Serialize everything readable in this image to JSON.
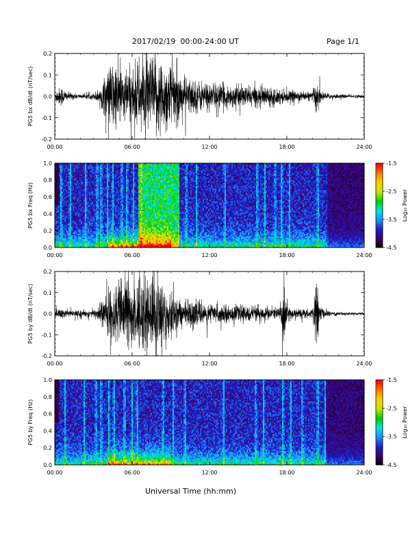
{
  "header": {
    "title": "2017/02/19  00:00-24:00 UT",
    "page": "Page 1/1"
  },
  "xlabel": "Universal Time (hh:mm)",
  "colors": {
    "waveform": "#000000",
    "colormap": [
      "#000000",
      "#3a0066",
      "#2020c8",
      "#1e90ff",
      "#00e5e5",
      "#00d000",
      "#c8e600",
      "#ffd000",
      "#ff7800",
      "#ff0000"
    ]
  },
  "chart_data": [
    {
      "type": "line",
      "ylabel": "PG5 bx dB/dt (nT/sec)",
      "xlim_hours": [
        0,
        24
      ],
      "ylim": [
        -0.2,
        0.2
      ],
      "x_ticks": [
        "00:00",
        "06:00",
        "12:00",
        "18:00",
        "24:00"
      ],
      "y_ticks": [
        "0.2",
        "0.1",
        "0.0",
        "-0.1",
        "-0.2"
      ],
      "envelope": {
        "hours": [
          0,
          0.5,
          1,
          2,
          3,
          3.5,
          4,
          4.5,
          5,
          5.5,
          6,
          6.5,
          7,
          7.5,
          8,
          8.5,
          9,
          9.5,
          10,
          11,
          12,
          13,
          14,
          15,
          16,
          17,
          18,
          19,
          20,
          20.3,
          20.6,
          21,
          22,
          23,
          24
        ],
        "amplitude": [
          0.03,
          0.05,
          0.02,
          0.01,
          0.015,
          0.04,
          0.12,
          0.18,
          0.16,
          0.13,
          0.15,
          0.17,
          0.2,
          0.2,
          0.2,
          0.18,
          0.17,
          0.13,
          0.1,
          0.08,
          0.07,
          0.06,
          0.055,
          0.05,
          0.05,
          0.045,
          0.03,
          0.025,
          0.02,
          0.1,
          0.03,
          0.015,
          0.01,
          0.008,
          0.008
        ]
      }
    },
    {
      "type": "heatmap",
      "ylabel": "PG5 bx Freq (Hz)",
      "xlim_hours": [
        0,
        24
      ],
      "ylim": [
        0,
        1.0
      ],
      "x_ticks": [
        "00:00",
        "06:00",
        "12:00",
        "18:00",
        "24:00"
      ],
      "y_ticks": [
        "1.0",
        "0.8",
        "0.6",
        "0.4",
        "0.2",
        "0.0"
      ],
      "colorbar": {
        "label": "Log₁₀ Power",
        "ticks": [
          "-1.5",
          "-2.5",
          "-3.5",
          "-4.5"
        ],
        "range": [
          -4.5,
          -1.5
        ]
      },
      "features": {
        "hf_band_hours": [
          6.5,
          9.7
        ],
        "strong_low_freq_hours": [
          4,
          9
        ],
        "vertical_streak_hours": [
          0.5,
          1.2,
          2.4,
          3.3,
          3.6,
          4.1,
          4.5,
          5.2,
          5.6,
          6.1,
          6.7,
          10.2,
          11.0,
          13.2,
          15.7,
          16.3,
          17.1,
          17.6,
          18.2,
          20.4,
          21.1
        ]
      }
    },
    {
      "type": "line",
      "ylabel": "PG5 by dB/dt (nT/sec)",
      "xlim_hours": [
        0,
        24
      ],
      "ylim": [
        -0.2,
        0.2
      ],
      "x_ticks": [
        "00:00",
        "06:00",
        "12:00",
        "18:00",
        "24:00"
      ],
      "y_ticks": [
        "0.2",
        "0.1",
        "0.0",
        "-0.1",
        "-0.2"
      ],
      "envelope": {
        "hours": [
          0,
          0.5,
          1,
          2,
          3,
          3.5,
          4,
          4.5,
          5,
          5.5,
          6,
          6.5,
          7,
          7.5,
          8,
          8.5,
          9,
          9.5,
          10,
          11,
          12,
          13,
          14,
          15,
          16,
          17,
          17.5,
          17.8,
          18.1,
          19,
          20,
          20.3,
          20.6,
          21,
          22,
          23,
          24
        ],
        "amplitude": [
          0.02,
          0.03,
          0.015,
          0.015,
          0.02,
          0.05,
          0.1,
          0.14,
          0.15,
          0.17,
          0.18,
          0.2,
          0.2,
          0.19,
          0.19,
          0.17,
          0.12,
          0.08,
          0.07,
          0.06,
          0.05,
          0.045,
          0.04,
          0.04,
          0.035,
          0.035,
          0.03,
          0.16,
          0.03,
          0.025,
          0.02,
          0.18,
          0.04,
          0.015,
          0.01,
          0.006,
          0.006
        ]
      }
    },
    {
      "type": "heatmap",
      "ylabel": "PG5 by Freq (Hz)",
      "xlim_hours": [
        0,
        24
      ],
      "ylim": [
        0,
        1.0
      ],
      "x_ticks": [
        "00:00",
        "06:00",
        "12:00",
        "18:00",
        "24:00"
      ],
      "y_ticks": [
        "1.0",
        "0.8",
        "0.6",
        "0.4",
        "0.2",
        "0.0"
      ],
      "colorbar": {
        "label": "Log₁₀ Power",
        "ticks": [
          "-1.5",
          "-2.5",
          "-3.5",
          "-4.5"
        ],
        "range": [
          -4.5,
          -1.5
        ]
      },
      "features": {
        "hf_band_hours": [],
        "strong_low_freq_hours": [
          4,
          9
        ],
        "vertical_streak_hours": [
          0.8,
          2.3,
          3.2,
          3.6,
          4.2,
          4.6,
          5.4,
          6.0,
          6.4,
          8.4,
          9.2,
          10.1,
          13.1,
          15.6,
          16.2,
          17.7,
          18.3,
          19.2,
          20.4,
          21.0
        ]
      }
    }
  ]
}
